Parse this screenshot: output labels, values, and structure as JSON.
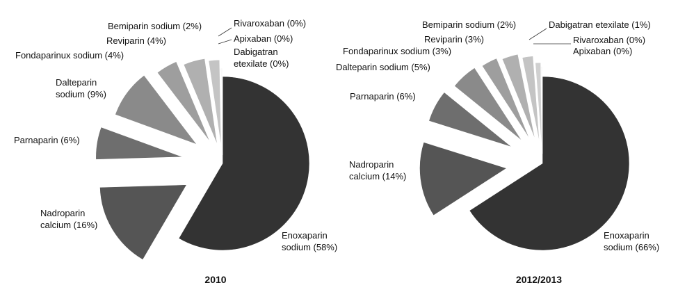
{
  "chart_data": [
    {
      "type": "pie",
      "title": "2010",
      "series": [
        {
          "name": "Enoxaparin sodium",
          "value": 58,
          "label_lines": [
            "Enoxaparin",
            "sodium (58%)"
          ]
        },
        {
          "name": "Nadroparin calcium",
          "value": 16,
          "label_lines": [
            "Nadroparin",
            "calcium (16%)"
          ]
        },
        {
          "name": "Parnaparin",
          "value": 6,
          "label_lines": [
            "Parnaparin (6%)"
          ]
        },
        {
          "name": "Dalteparin sodium",
          "value": 9,
          "label_lines": [
            "Dalteparin",
            "sodium (9%)"
          ]
        },
        {
          "name": "Fondaparinux sodium",
          "value": 4,
          "label_lines": [
            "Fondaparinux sodium (4%)"
          ]
        },
        {
          "name": "Reviparin",
          "value": 4,
          "label_lines": [
            "Reviparin (4%)"
          ]
        },
        {
          "name": "Bemiparin sodium",
          "value": 2,
          "label_lines": [
            "Bemiparin sodium (2%)"
          ]
        },
        {
          "name": "Rivaroxaban",
          "value": 0,
          "label_lines": [
            "Rivaroxaban (0%)"
          ]
        },
        {
          "name": "Apixaban",
          "value": 0,
          "label_lines": [
            "Apixaban (0%)"
          ]
        },
        {
          "name": "Dabigatran etexilate",
          "value": 0,
          "label_lines": [
            "Dabigatran",
            "etexilate (0%)"
          ]
        }
      ]
    },
    {
      "type": "pie",
      "title": "2012/2013",
      "series": [
        {
          "name": "Enoxaparin sodium",
          "value": 66,
          "label_lines": [
            "Enoxaparin",
            "sodium (66%)"
          ]
        },
        {
          "name": "Nadroparin calcium",
          "value": 14,
          "label_lines": [
            "Nadroparin",
            "calcium (14%)"
          ]
        },
        {
          "name": "Parnaparin",
          "value": 6,
          "label_lines": [
            "Parnaparin (6%)"
          ]
        },
        {
          "name": "Dalteparin sodium",
          "value": 5,
          "label_lines": [
            "Dalteparin sodium (5%)"
          ]
        },
        {
          "name": "Fondaparinux sodium",
          "value": 3,
          "label_lines": [
            "Fondaparinux sodium (3%)"
          ]
        },
        {
          "name": "Reviparin",
          "value": 3,
          "label_lines": [
            "Reviparin (3%)"
          ]
        },
        {
          "name": "Bemiparin sodium",
          "value": 2,
          "label_lines": [
            "Bemiparin sodium (2%)"
          ]
        },
        {
          "name": "Dabigatran etexilate",
          "value": 1,
          "label_lines": [
            "Dabigatran etexilate (1%)"
          ]
        },
        {
          "name": "Rivaroxaban",
          "value": 0,
          "label_lines": [
            "Rivaroxaban (0%)"
          ]
        },
        {
          "name": "Apixaban",
          "value": 0,
          "label_lines": [
            "Apixaban (0%)"
          ]
        }
      ]
    }
  ],
  "colors": [
    "#333333",
    "#555555",
    "#6e6e6e",
    "#8a8a8a",
    "#9e9e9e",
    "#b0b0b0",
    "#c4c4c4",
    "#d0d0d0",
    "#d6d6d6",
    "#dcdcdc"
  ]
}
